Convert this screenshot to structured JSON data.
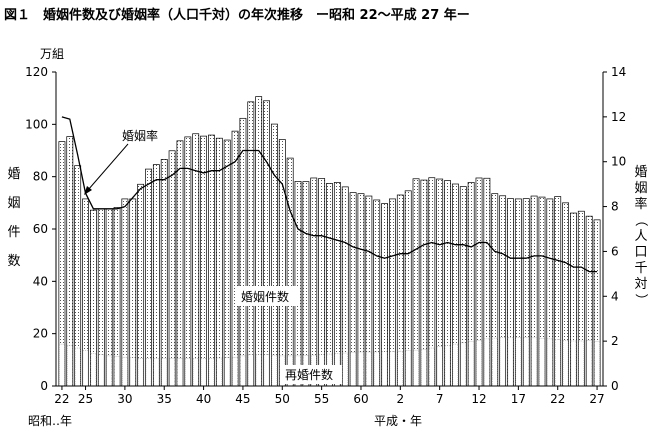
{
  "chart_data": {
    "type": "bar",
    "title": "図１　婚姻件数及び婚姻率（人口千対）の年次推移　ー昭和 22～平成 27 年ー",
    "left_unit": "万組",
    "ylabel_left": "婚姻件数",
    "ylabel_right": "婚姻率（人口千対）",
    "ylim_left": [
      0,
      120
    ],
    "ylim_right": [
      0,
      14
    ],
    "yticks_left": [
      "0",
      "20",
      "40",
      "60",
      "80",
      "100",
      "120"
    ],
    "yticks_right": [
      "0",
      "2",
      "4",
      "6",
      "8",
      "10",
      "12",
      "14"
    ],
    "era_labels": {
      "showa": "昭和‥年",
      "heisei": "平成・年"
    },
    "x_tick_labels": [
      {
        "year_index": 0,
        "label": "22"
      },
      {
        "year_index": 3,
        "label": "25"
      },
      {
        "year_index": 8,
        "label": "30"
      },
      {
        "year_index": 13,
        "label": "35"
      },
      {
        "year_index": 18,
        "label": "40"
      },
      {
        "year_index": 23,
        "label": "45"
      },
      {
        "year_index": 28,
        "label": "50"
      },
      {
        "year_index": 33,
        "label": "55"
      },
      {
        "year_index": 38,
        "label": "60"
      },
      {
        "year_index": 43,
        "label": "2"
      },
      {
        "year_index": 48,
        "label": "7"
      },
      {
        "year_index": 53,
        "label": "12"
      },
      {
        "year_index": 58,
        "label": "17"
      },
      {
        "year_index": 63,
        "label": "22"
      },
      {
        "year_index": 68,
        "label": "27"
      }
    ],
    "grid": false,
    "series": [
      {
        "name": "婚姻件数",
        "axis": "left",
        "values": [
          93.4,
          95.3,
          84.2,
          71.5,
          67.2,
          67.6,
          67.7,
          68.2,
          71.5,
          71.5,
          77.1,
          82.9,
          84.6,
          86.6,
          89.9,
          93.7,
          95.2,
          96.4,
          95.5,
          95.9,
          94.7,
          94.0,
          97.4,
          102.3,
          108.6,
          110.6,
          109.0,
          100.1,
          94.2,
          87.1,
          78.2,
          78.1,
          79.5,
          79.3,
          77.4,
          77.8,
          76.1,
          73.9,
          73.5,
          72.6,
          71.1,
          69.7,
          71.5,
          73.0,
          74.6,
          79.2,
          78.7,
          79.6,
          79.1,
          78.5,
          77.2,
          76.2,
          77.8,
          79.5,
          79.4,
          73.5,
          72.7,
          71.6,
          71.5,
          71.6,
          72.6,
          72.2,
          71.5,
          72.4,
          70.0,
          66.1,
          66.8,
          64.9,
          63.5
        ]
      },
      {
        "name": "再婚件数",
        "axis": "left",
        "values": [
          16.0,
          15.5,
          14.5,
          13.5,
          12.5,
          12.0,
          11.5,
          11.2,
          11.0,
          10.8,
          10.5,
          10.5,
          10.5,
          10.5,
          10.4,
          10.5,
          10.5,
          10.5,
          10.5,
          10.6,
          10.7,
          10.8,
          11.0,
          11.5,
          12.0,
          12.0,
          12.0,
          11.8,
          11.5,
          11.5,
          11.5,
          11.6,
          11.8,
          12.0,
          12.2,
          12.4,
          12.6,
          12.8,
          13.0,
          13.0,
          13.0,
          13.1,
          13.2,
          13.3,
          13.5,
          13.7,
          14.0,
          14.5,
          15.0,
          15.5,
          16.0,
          16.5,
          17.0,
          17.5,
          18.0,
          18.3,
          18.5,
          18.5,
          18.6,
          18.5,
          18.4,
          18.2,
          18.0,
          17.8,
          17.5,
          17.2,
          17.2,
          17.3,
          17.1
        ]
      },
      {
        "name": "婚姻率",
        "axis": "right",
        "values": [
          12.0,
          11.9,
          10.3,
          8.6,
          7.9,
          7.9,
          7.9,
          7.9,
          8.0,
          8.4,
          8.8,
          9.0,
          9.2,
          9.2,
          9.4,
          9.7,
          9.7,
          9.6,
          9.5,
          9.6,
          9.6,
          9.8,
          10.0,
          10.5,
          10.5,
          10.5,
          10.0,
          9.4,
          9.0,
          7.8,
          7.0,
          6.8,
          6.7,
          6.7,
          6.6,
          6.5,
          6.4,
          6.2,
          6.1,
          6.0,
          5.8,
          5.7,
          5.8,
          5.9,
          5.9,
          6.1,
          6.3,
          6.4,
          6.3,
          6.4,
          6.3,
          6.3,
          6.2,
          6.4,
          6.4,
          6.0,
          5.9,
          5.7,
          5.7,
          5.7,
          5.8,
          5.8,
          5.7,
          5.6,
          5.5,
          5.3,
          5.3,
          5.1,
          5.1
        ]
      }
    ],
    "annotations": [
      {
        "text": "婚姻率",
        "target_series": "婚姻率",
        "year_index": 3
      },
      {
        "text": "婚姻件数",
        "target_series": "婚姻件数"
      },
      {
        "text": "再婚件数",
        "target_series": "再婚件数"
      }
    ]
  }
}
